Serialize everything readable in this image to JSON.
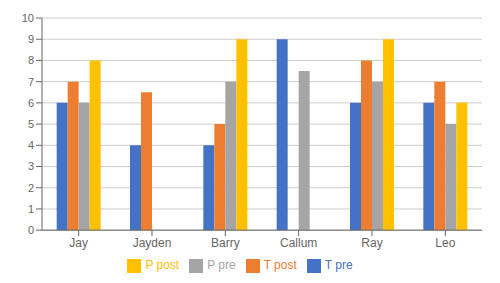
{
  "chart_data": {
    "type": "bar",
    "categories": [
      "Jay",
      "Jayden",
      "Barry",
      "Callum",
      "Ray",
      "Leo"
    ],
    "series": [
      {
        "name": "T pre",
        "color": "#4472C4",
        "values": [
          6,
          4,
          4,
          9,
          6,
          6
        ]
      },
      {
        "name": "T post",
        "color": "#ED7D31",
        "values": [
          7,
          6.5,
          5,
          null,
          8,
          7
        ]
      },
      {
        "name": "P pre",
        "color": "#A5A5A5",
        "values": [
          6,
          null,
          7,
          7.5,
          7,
          5
        ]
      },
      {
        "name": "P post",
        "color": "#FFC000",
        "values": [
          8,
          null,
          9,
          null,
          9,
          6
        ]
      }
    ],
    "ylim": [
      0,
      10
    ],
    "yticks": [
      0,
      1,
      2,
      3,
      4,
      5,
      6,
      7,
      8,
      9,
      10
    ],
    "grid": true,
    "legend": "bottom"
  }
}
